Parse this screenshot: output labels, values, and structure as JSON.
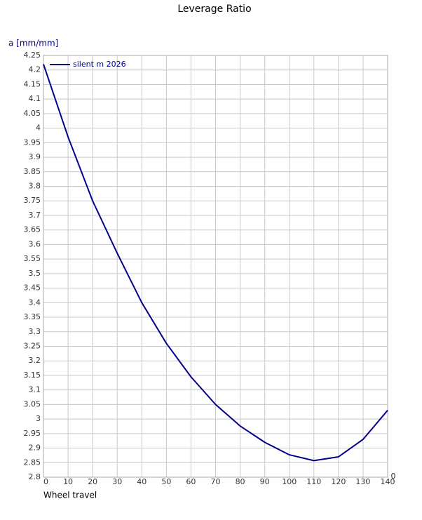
{
  "chart_data": {
    "type": "line",
    "title": "Leverage Ratio",
    "y_label": "a [mm/mm]",
    "x_label": "Wheel travel",
    "annotations": [
      "0"
    ],
    "x": [
      0,
      10,
      20,
      30,
      40,
      50,
      60,
      70,
      80,
      90,
      100,
      110,
      120,
      130,
      140
    ],
    "series": [
      {
        "name": "silent m 2026",
        "color": "#00008b",
        "values": [
          4.22,
          3.97,
          3.75,
          3.57,
          3.4,
          3.26,
          3.145,
          3.05,
          2.976,
          2.92,
          2.877,
          2.857,
          2.87,
          2.93,
          3.03
        ]
      }
    ],
    "xlim": [
      0,
      140
    ],
    "xticks": [
      0,
      10,
      20,
      30,
      40,
      50,
      60,
      70,
      80,
      90,
      100,
      110,
      120,
      130,
      140
    ],
    "ylim": [
      2.8,
      4.25
    ],
    "yticks": [
      2.8,
      2.85,
      2.9,
      2.95,
      3,
      3.05,
      3.1,
      3.15,
      3.2,
      3.25,
      3.3,
      3.35,
      3.4,
      3.45,
      3.5,
      3.55,
      3.6,
      3.65,
      3.7,
      3.75,
      3.8,
      3.85,
      3.9,
      3.95,
      4,
      4.05,
      4.1,
      4.15,
      4.2,
      4.25
    ],
    "grid": true,
    "legend": "top-left"
  }
}
